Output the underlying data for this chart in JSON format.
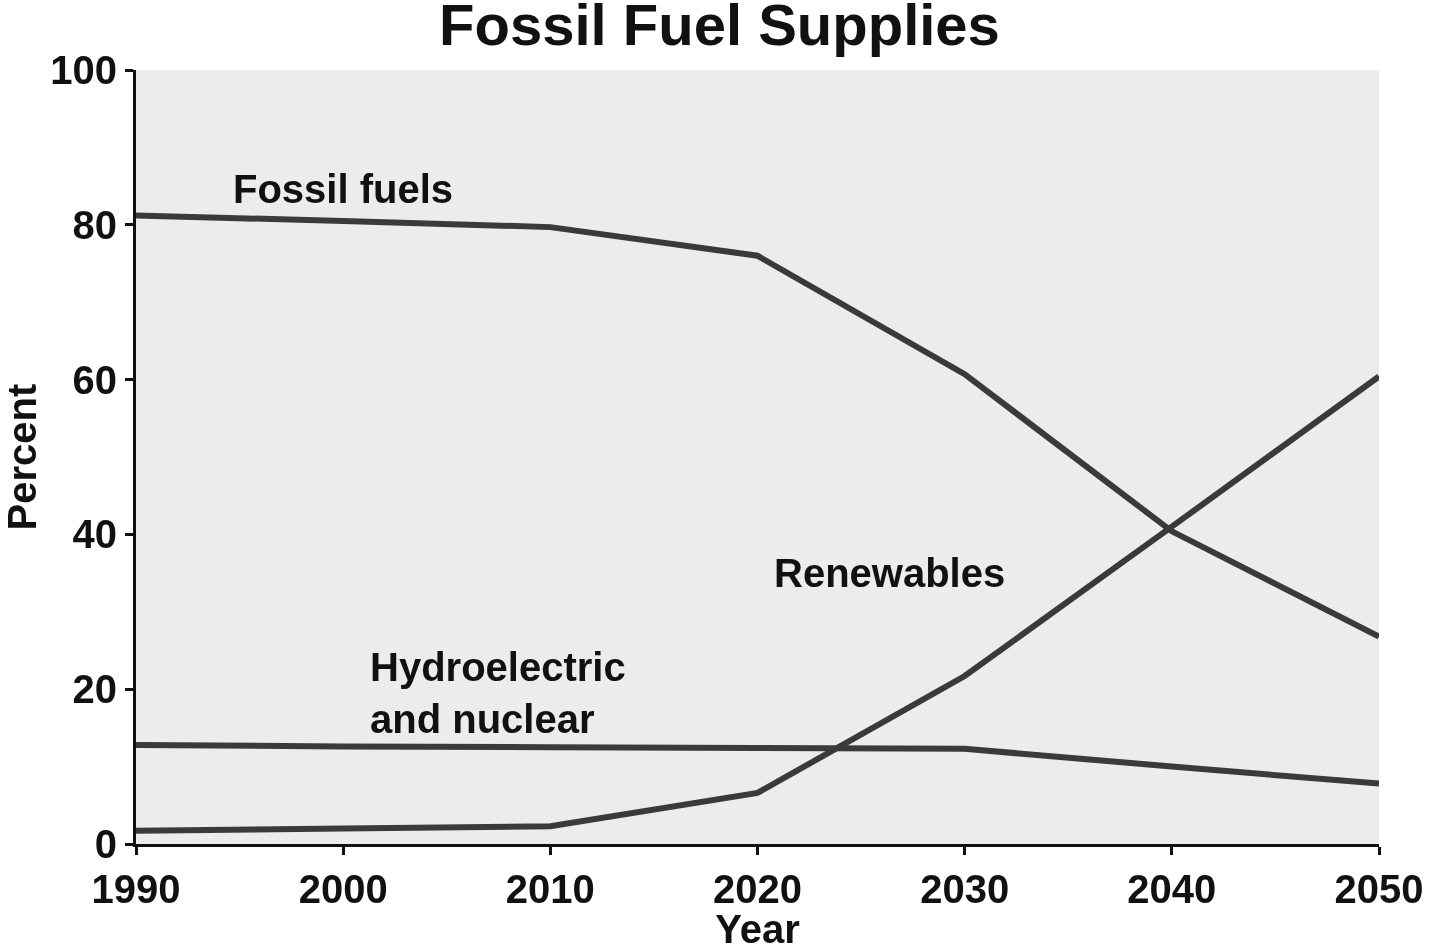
{
  "chart_data": {
    "type": "line",
    "title": "Fossil Fuel Supplies",
    "xlabel": "Year",
    "ylabel": "Percent",
    "x": [
      1990,
      2000,
      2010,
      2020,
      2030,
      2040,
      2050
    ],
    "series": [
      {
        "name": "Fossil fuels",
        "color": "#3a3a3a",
        "values": [
          81.2,
          80.5,
          79.7,
          76,
          60.7,
          40.4,
          26.8
        ]
      },
      {
        "name": "Renewables",
        "color": "#3a3a3a",
        "values": [
          1.7,
          2,
          2.3,
          6.6,
          21.7,
          41,
          60.4
        ]
      },
      {
        "name": "Hydroelectric and nuclear",
        "color": "#3a3a3a",
        "values": [
          12.8,
          12.6,
          12.5,
          12.4,
          12.3,
          10,
          7.8
        ]
      }
    ],
    "xlim": [
      1990,
      2050
    ],
    "xticks": [
      1990,
      2000,
      2010,
      2020,
      2030,
      2040,
      2050
    ],
    "ylim": [
      0,
      100
    ],
    "yticks": [
      0,
      20,
      40,
      60,
      80,
      100
    ],
    "grid": false,
    "legend": false,
    "marker": "none",
    "line_style": "solid"
  }
}
